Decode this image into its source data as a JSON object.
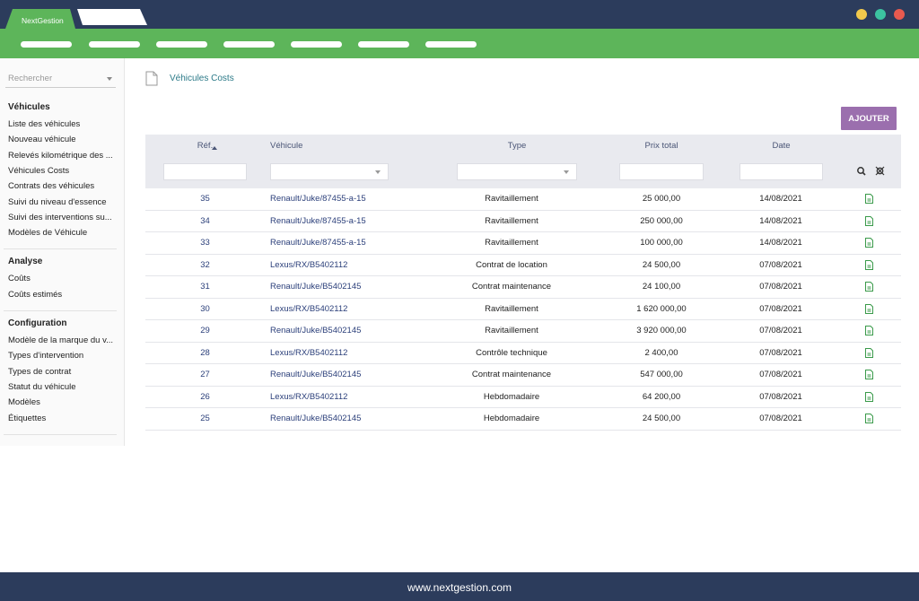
{
  "header": {
    "brand": "NextGestion"
  },
  "sidebar": {
    "search": "Rechercher",
    "sections": [
      {
        "title": "Véhicules",
        "items": [
          "Liste des véhicules",
          "Nouveau véhicule",
          "Relevés kilométrique des ...",
          "Véhicules Costs",
          "Contrats des véhicules",
          "Suivi du niveau d'essence",
          "Suivi des interventions su...",
          "Modèles de Véhicule"
        ]
      },
      {
        "title": "Analyse",
        "items": [
          "Coûts",
          "Coûts estimés"
        ]
      },
      {
        "title": "Configuration",
        "items": [
          "Modèle de la marque du v...",
          "Types d'intervention",
          "Types de contrat",
          "Statut du véhicule",
          "Modèles",
          "Étiquettes"
        ]
      }
    ]
  },
  "page": {
    "title": "Véhicules Costs",
    "add_button": "AJOUTER"
  },
  "table": {
    "columns": [
      "Réf.",
      "Véhicule",
      "Type",
      "Prix total",
      "Date"
    ],
    "rows": [
      [
        "35",
        "Renault/Juke/87455-a-15",
        "Ravitaillement",
        "25 000,00",
        "14/08/2021"
      ],
      [
        "34",
        "Renault/Juke/87455-a-15",
        "Ravitaillement",
        "250 000,00",
        "14/08/2021"
      ],
      [
        "33",
        "Renault/Juke/87455-a-15",
        "Ravitaillement",
        "100 000,00",
        "14/08/2021"
      ],
      [
        "32",
        "Lexus/RX/B5402112",
        "Contrat de location",
        "24 500,00",
        "07/08/2021"
      ],
      [
        "31",
        "Renault/Juke/B5402145",
        "Contrat maintenance",
        "24 100,00",
        "07/08/2021"
      ],
      [
        "30",
        "Lexus/RX/B5402112",
        "Ravitaillement",
        "1 620 000,00",
        "07/08/2021"
      ],
      [
        "29",
        "Renault/Juke/B5402145",
        "Ravitaillement",
        "3 920 000,00",
        "07/08/2021"
      ],
      [
        "28",
        "Lexus/RX/B5402112",
        "Contrôle technique",
        "2 400,00",
        "07/08/2021"
      ],
      [
        "27",
        "Renault/Juke/B5402145",
        "Contrat maintenance",
        "547 000,00",
        "07/08/2021"
      ],
      [
        "26",
        "Lexus/RX/B5402112",
        "Hebdomadaire",
        "64 200,00",
        "07/08/2021"
      ],
      [
        "25",
        "Renault/Juke/B5402145",
        "Hebdomadaire",
        "24 500,00",
        "07/08/2021"
      ]
    ]
  },
  "footer": {
    "url": "www.nextgestion.com"
  }
}
